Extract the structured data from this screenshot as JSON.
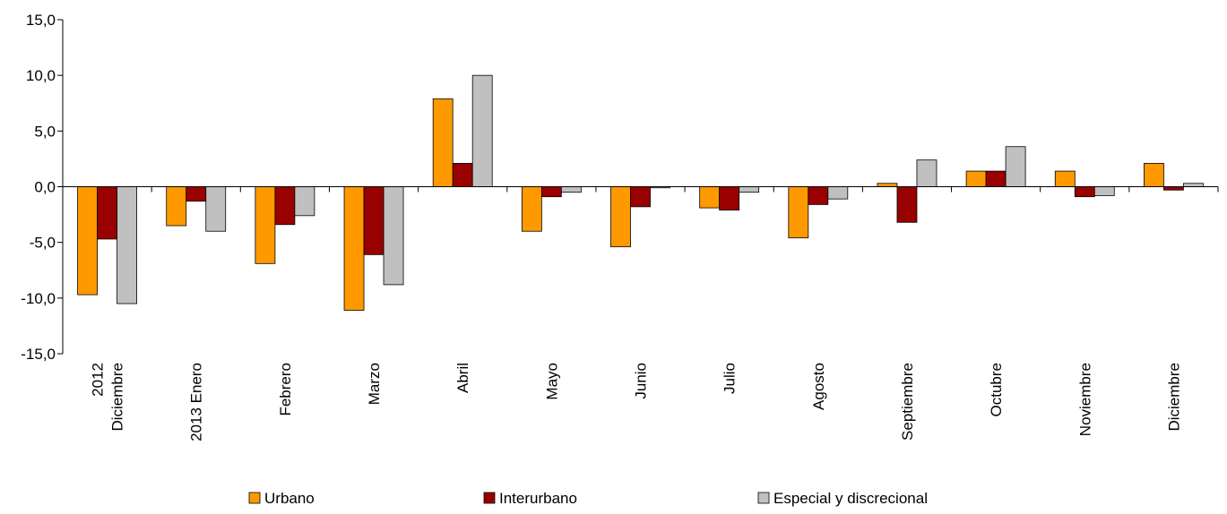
{
  "chart_data": {
    "type": "bar",
    "title": "",
    "xlabel": "",
    "ylabel": "",
    "categories": [
      [
        "2012",
        "Diciembre"
      ],
      [
        "2013 Enero"
      ],
      [
        "Febrero"
      ],
      [
        "Marzo"
      ],
      [
        "Abril"
      ],
      [
        "Mayo"
      ],
      [
        "Junio"
      ],
      [
        "Julio"
      ],
      [
        "Agosto"
      ],
      [
        "Septiembre"
      ],
      [
        "Octubre"
      ],
      [
        "Noviembre"
      ],
      [
        "Diciembre"
      ]
    ],
    "series": [
      {
        "name": "Urbano",
        "color": "#FF9900",
        "values": [
          -9.7,
          -3.5,
          -6.9,
          -11.1,
          7.9,
          -4.0,
          -5.4,
          -1.9,
          -4.6,
          0.3,
          1.4,
          1.4,
          2.1
        ]
      },
      {
        "name": "Interurbano",
        "color": "#990000",
        "values": [
          -4.7,
          -1.3,
          -3.4,
          -6.1,
          2.1,
          -0.9,
          -1.8,
          -2.1,
          -1.6,
          -3.2,
          1.4,
          -0.9,
          -0.3
        ]
      },
      {
        "name": "Especial y discrecional",
        "color": "#C0C0C0",
        "values": [
          -10.5,
          -4.0,
          -2.6,
          -8.8,
          10.0,
          -0.5,
          -0.1,
          -0.5,
          -1.1,
          2.4,
          3.6,
          -0.8,
          0.3
        ]
      }
    ],
    "ylim": [
      -15,
      15
    ],
    "yticks": [
      15,
      10,
      5,
      0,
      -5,
      -10,
      -15
    ],
    "ytick_labels": [
      "15,0",
      "10,0",
      "5,0",
      "0,0",
      "-5,0",
      "-10,0",
      "-15,0"
    ],
    "grid": false,
    "legend_position": "bottom"
  }
}
